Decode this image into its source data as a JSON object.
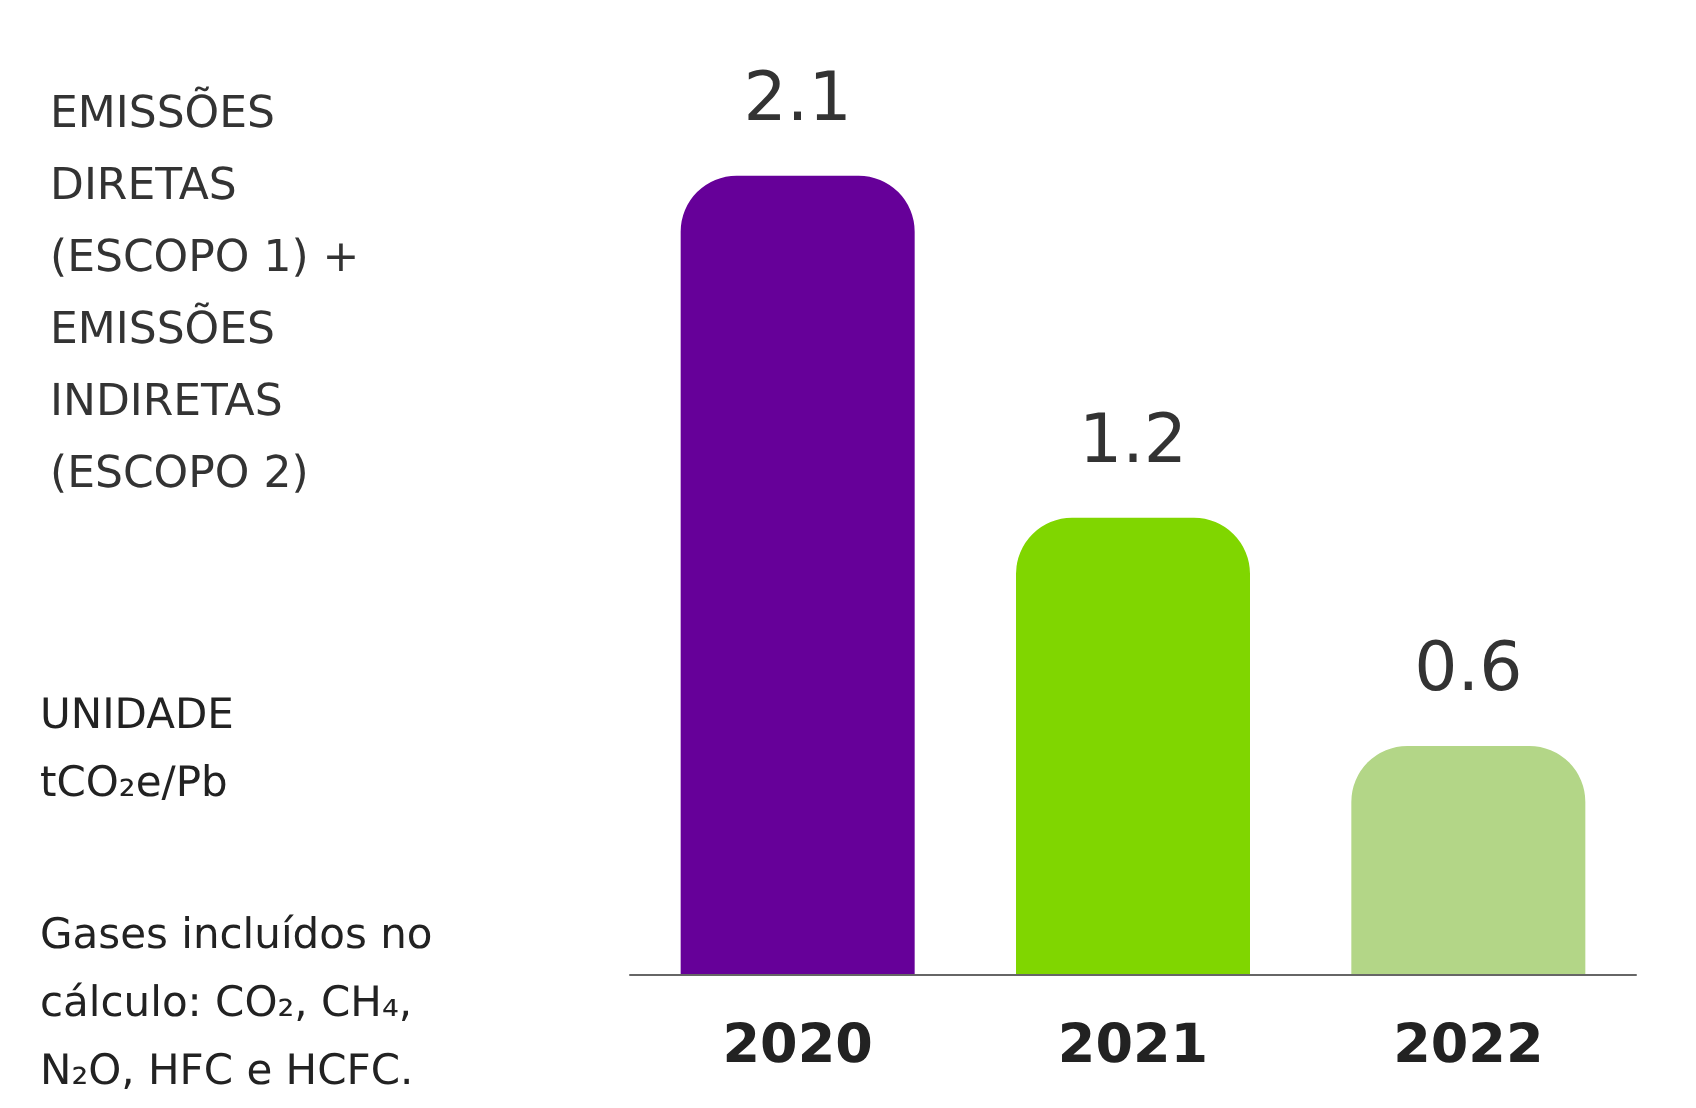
{
  "chart_data": {
    "type": "bar",
    "title": "EMISSÕES DIRETAS (ESCOPO 1) + EMISSÕES INDIRETAS (ESCOPO 2)",
    "annotations": [
      "UNIDADE tCO₂e/Pb",
      "Gases incluídos no cálculo: CO₂, CH₄, N₂O, HFC e HCFC."
    ],
    "categories": [
      "2020",
      "2021",
      "2022"
    ],
    "values": [
      2.1,
      1.2,
      0.6
    ],
    "colors": [
      "#660099",
      "#80d600",
      "#b3d687"
    ],
    "data_labels": true
  }
}
